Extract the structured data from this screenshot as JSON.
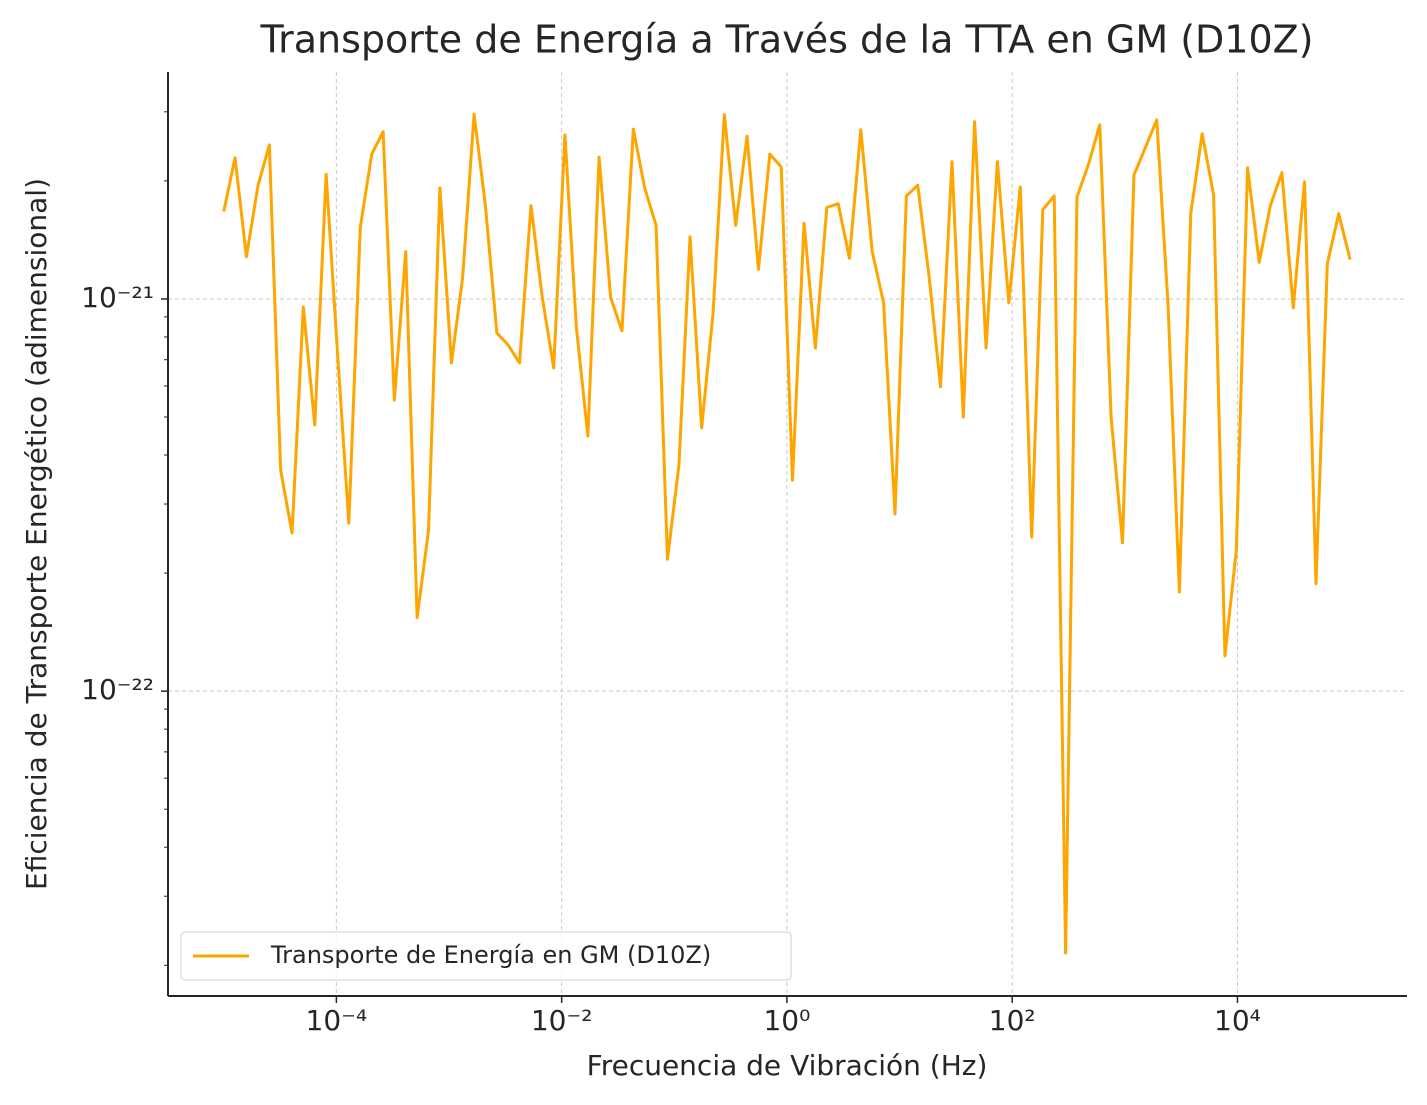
{
  "chart_data": {
    "type": "line",
    "title": "Transporte de Energía a Través de la TTA en GM (D10Z)",
    "xlabel": "Frecuencia de Vibración (Hz)",
    "ylabel": "Eficiencia de Transporte Energético (adimensional)",
    "xscale": "log",
    "yscale": "log",
    "grid": true,
    "legend": "lower left",
    "xlim": [
      3.2e-06,
      320000.0
    ],
    "ylim": [
      1.67e-23,
      3.79e-21
    ],
    "xticks": [
      {
        "value": 0.0001,
        "label": "10⁻⁴"
      },
      {
        "value": 0.01,
        "label": "10⁻²"
      },
      {
        "value": 1,
        "label": "10⁰"
      },
      {
        "value": 100,
        "label": "10²"
      },
      {
        "value": 10000,
        "label": "10⁴"
      }
    ],
    "yticks": [
      {
        "value": 1e-22,
        "label": "10⁻²²"
      },
      {
        "value": 1e-21,
        "label": "10⁻²¹"
      }
    ],
    "yminorticks": [
      2e-23,
      3e-23,
      4e-23,
      5e-23,
      6e-23,
      7e-23,
      8e-23,
      9e-23,
      2e-22,
      3e-22,
      4e-22,
      5e-22,
      6e-22,
      7e-22,
      8e-22,
      9e-22,
      2e-21,
      3e-21
    ],
    "x": [
      1e-05,
      1.26e-05,
      1.59e-05,
      2.01e-05,
      2.54e-05,
      3.2e-05,
      4.04e-05,
      5.09e-05,
      6.43e-05,
      8.11e-05,
      0.000102,
      0.000129,
      0.000163,
      0.000206,
      0.00026,
      0.000327,
      0.000413,
      0.000521,
      0.000658,
      0.00083,
      0.00105,
      0.00132,
      0.00167,
      0.0021,
      0.00266,
      0.00335,
      0.00423,
      0.00534,
      0.00673,
      0.0085,
      0.0107,
      0.0135,
      0.0171,
      0.0215,
      0.0272,
      0.0343,
      0.0433,
      0.0546,
      0.0689,
      0.087,
      0.11,
      0.138,
      0.175,
      0.221,
      0.278,
      0.351,
      0.443,
      0.559,
      0.705,
      0.89,
      1.12,
      1.42,
      1.79,
      2.26,
      2.85,
      3.59,
      4.53,
      5.72,
      7.22,
      9.11,
      11.5,
      14.5,
      18.3,
      23.1,
      29.2,
      36.8,
      46.4,
      58.6,
      73.9,
      93.3,
      118,
      149,
      187,
      236,
      298,
      376,
      475,
      599,
      756,
      954,
      1205,
      1520,
      1920,
      2420,
      3050,
      3850,
      4860,
      6140,
      7740,
      9770,
      12300,
      15600,
      19600,
      24800,
      31300,
      39400,
      49800,
      62800,
      79200,
      100000
    ],
    "series": [
      {
        "name": "Transporte de Energía en GM (D10Z)",
        "color": "#ffa500",
        "values": [
          1.67e-21,
          2.29e-21,
          1.28e-21,
          1.94e-21,
          2.47e-21,
          3.66e-22,
          2.53e-22,
          9.54e-22,
          4.77e-22,
          2.08e-21,
          7.41e-22,
          2.68e-22,
          1.52e-21,
          2.34e-21,
          2.67e-21,
          5.52e-22,
          1.32e-21,
          1.54e-22,
          2.57e-22,
          1.92e-21,
          6.87e-22,
          1.13e-21,
          2.96e-21,
          1.74e-21,
          8.19e-22,
          7.63e-22,
          6.87e-22,
          1.73e-21,
          1.01e-21,
          6.67e-22,
          2.62e-21,
          8.49e-22,
          4.47e-22,
          2.3e-21,
          1.01e-21,
          8.29e-22,
          2.71e-21,
          1.92e-21,
          1.54e-21,
          2.17e-22,
          3.77e-22,
          1.44e-21,
          4.69e-22,
          9.21e-22,
          2.95e-21,
          1.54e-21,
          2.6e-21,
          1.19e-21,
          2.34e-21,
          2.17e-21,
          3.45e-22,
          1.56e-21,
          7.5e-22,
          1.71e-21,
          1.75e-21,
          1.27e-21,
          2.7e-21,
          1.32e-21,
          9.77e-22,
          2.83e-22,
          1.83e-21,
          1.95e-21,
          1.14e-21,
          5.97e-22,
          2.24e-21,
          5e-22,
          2.83e-21,
          7.5e-22,
          2.24e-21,
          9.77e-22,
          1.93e-21,
          2.47e-22,
          1.69e-21,
          1.83e-21,
          2.15e-23,
          1.82e-21,
          2.2e-21,
          2.78e-21,
          4.97e-22,
          2.39e-22,
          2.07e-21,
          2.43e-21,
          2.86e-21,
          9.65e-22,
          1.79e-22,
          1.65e-21,
          2.64e-21,
          1.84e-21,
          1.23e-22,
          2.29e-22,
          2.16e-21,
          1.24e-21,
          1.73e-21,
          2.1e-21,
          9.49e-22,
          1.99e-21,
          1.88e-22,
          1.23e-21,
          1.65e-21,
          1.26e-21
        ]
      }
    ]
  }
}
